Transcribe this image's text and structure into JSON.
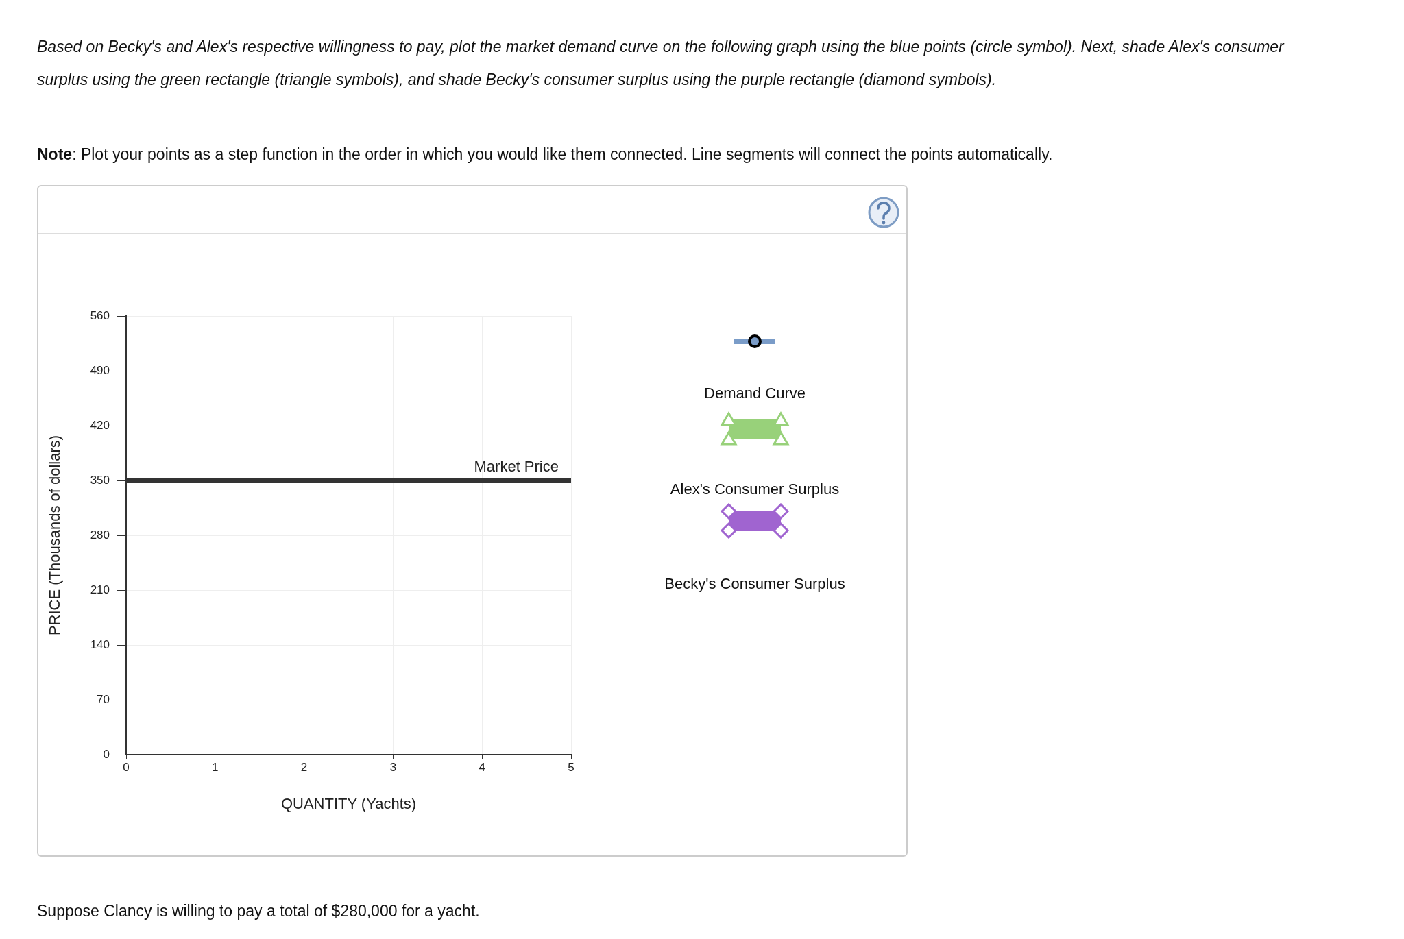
{
  "chart_data": {
    "type": "line",
    "title": "Based on Becky's and Alex's respective willingness to pay, plot the market demand curve on the following graph using the blue points (circle symbol). Next, shade Alex's consumer surplus using the green rectangle (triangle symbols), and shade Becky's consumer surplus using the purple rectangle (diamond symbols).",
    "subtitle": "Note: Plot your points as a step function in the order in which you would like them connected. Line segments will connect the points automatically.",
    "xlabel": "QUANTITY (Yachts)",
    "ylabel": "PRICE (Thousands of dollars)",
    "xlim": [
      0,
      5
    ],
    "xticks": [
      0,
      1,
      2,
      3,
      4,
      5
    ],
    "ylim": [
      0,
      560
    ],
    "yticks": [
      0,
      70,
      140,
      210,
      280,
      350,
      420,
      490,
      560
    ],
    "grid": true,
    "ref_lines": [
      {
        "axis": "y",
        "value": 350,
        "label": "Market Price",
        "color": "#333333"
      }
    ],
    "annotations": [
      "Demand Curve",
      "Alex's Consumer Surplus",
      "Becky's Consumer Surplus",
      "Suppose Clancy is willing to pay a total of $280,000 for a yacht."
    ]
  }
}
